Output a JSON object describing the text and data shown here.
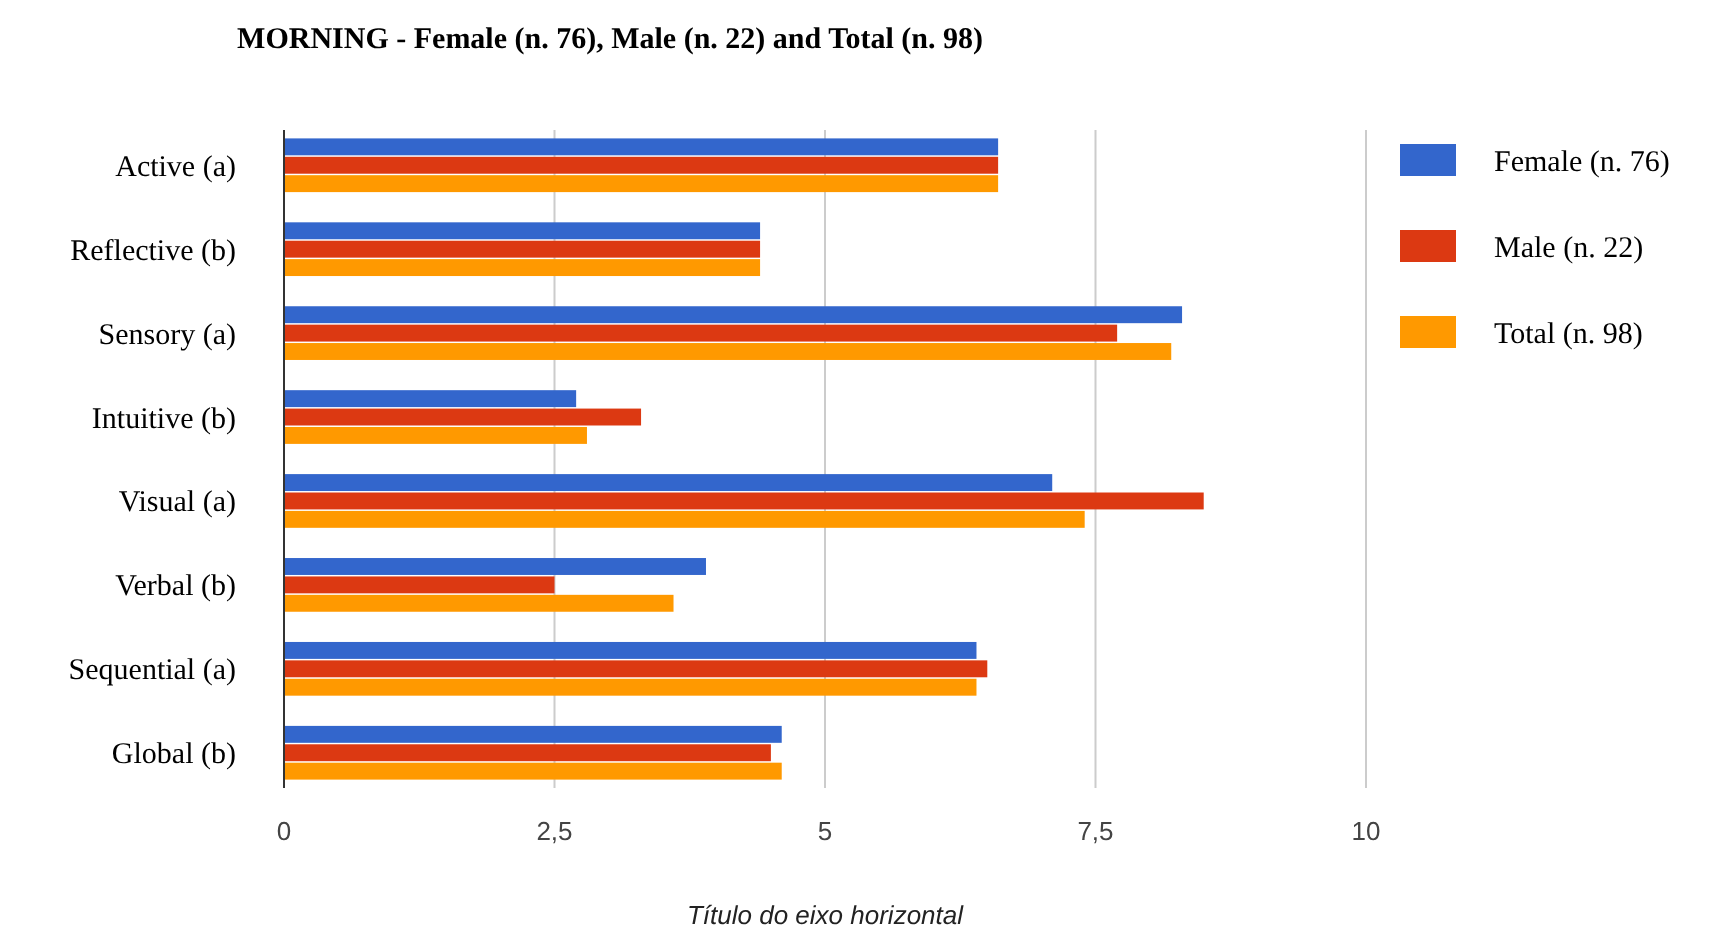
{
  "chart_data": {
    "type": "bar",
    "orientation": "horizontal",
    "title": "MORNING - Female (n. 76), Male (n. 22) and Total (n. 98)",
    "xlabel": "Título do eixo horizontal",
    "categories": [
      "Active (a)",
      "Reflective (b)",
      "Sensory (a)",
      "Intuitive (b)",
      "Visual (a)",
      "Verbal (b)",
      "Sequential (a)",
      "Global (b)"
    ],
    "series": [
      {
        "name": "Female (n. 76)",
        "color": "#3366cc",
        "values": [
          6.6,
          4.4,
          8.3,
          2.7,
          7.1,
          3.9,
          6.4,
          4.6
        ]
      },
      {
        "name": "Male (n. 22)",
        "color": "#dc3912",
        "values": [
          6.6,
          4.4,
          7.7,
          3.3,
          8.5,
          2.5,
          6.5,
          4.5
        ]
      },
      {
        "name": "Total (n. 98)",
        "color": "#ff9900",
        "values": [
          6.6,
          4.4,
          8.2,
          2.8,
          7.4,
          3.6,
          6.4,
          4.6
        ]
      }
    ],
    "xlim": [
      0,
      10
    ],
    "xticks": [
      0,
      {
        "value": 2.5,
        "label": "2,5"
      },
      5,
      {
        "value": 7.5,
        "label": "7,5"
      },
      10
    ],
    "grid": "x",
    "legend": "right"
  }
}
